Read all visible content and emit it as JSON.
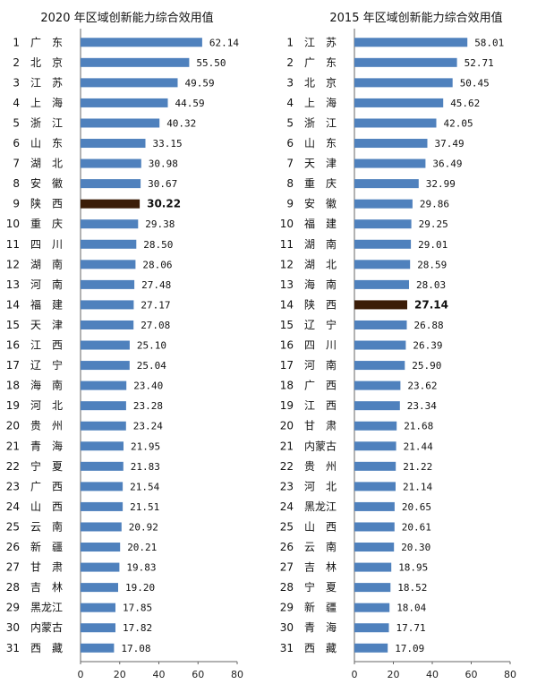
{
  "colors": {
    "bar": "#4f81bd",
    "highlight": "#3b1d08",
    "axis": "#666666",
    "text": "#111111"
  },
  "chart_data": [
    {
      "type": "bar",
      "orientation": "horizontal",
      "title": "2020 年区域创新能力综合效用值",
      "xlim": [
        0,
        80
      ],
      "xticks": [
        0,
        20,
        40,
        60,
        80
      ],
      "grid": false,
      "highlight": "陕西",
      "ranks": [
        "1",
        "2",
        "3",
        "4",
        "5",
        "6",
        "7",
        "8",
        "9",
        "10",
        "11",
        "12",
        "13",
        "14",
        "15",
        "16",
        "17",
        "18",
        "19",
        "20",
        "21",
        "22",
        "23",
        "24",
        "25",
        "26",
        "27",
        "28",
        "29",
        "30",
        "31"
      ],
      "categories": [
        "广　东",
        "北　京",
        "江　苏",
        "上　海",
        "浙　江",
        "山　东",
        "湖　北",
        "安　徽",
        "陕　西",
        "重　庆",
        "四　川",
        "湖　南",
        "河　南",
        "福　建",
        "天　津",
        "江　西",
        "辽　宁",
        "海　南",
        "河　北",
        "贵　州",
        "青　海",
        "宁　夏",
        "广　西",
        "山　西",
        "云　南",
        "新　疆",
        "甘　肃",
        "吉　林",
        "黑龙江",
        "内蒙古",
        "西　藏"
      ],
      "labels": [
        "62.14",
        "55.50",
        "49.59",
        "44.59",
        "40.32",
        "33.15",
        "30.98",
        "30.67",
        "30.22",
        "29.38",
        "28.50",
        "28.06",
        "27.48",
        "27.17",
        "27.08",
        "25.10",
        "25.04",
        "23.40",
        "23.28",
        "23.24",
        "21.95",
        "21.83",
        "21.54",
        "21.51",
        "20.92",
        "20.21",
        "19.83",
        "19.20",
        "17.85",
        "17.82",
        "17.08"
      ],
      "values": [
        62.14,
        55.5,
        49.59,
        44.59,
        40.32,
        33.15,
        30.98,
        30.67,
        30.22,
        29.38,
        28.5,
        28.06,
        27.48,
        27.17,
        27.08,
        25.1,
        25.04,
        23.4,
        23.28,
        23.24,
        21.95,
        21.83,
        21.54,
        21.51,
        20.92,
        20.21,
        19.83,
        19.2,
        17.85,
        17.82,
        17.08
      ]
    },
    {
      "type": "bar",
      "orientation": "horizontal",
      "title": "2015 年区域创新能力综合效用值",
      "xlim": [
        0,
        80
      ],
      "xticks": [
        0,
        20,
        40,
        60,
        80
      ],
      "grid": false,
      "highlight": "陕西",
      "ranks": [
        "1",
        "2",
        "3",
        "4",
        "5",
        "6",
        "7",
        "8",
        "9",
        "10",
        "11",
        "12",
        "13",
        "14",
        "15",
        "16",
        "17",
        "18",
        "19",
        "20",
        "21",
        "22",
        "23",
        "24",
        "25",
        "26",
        "27",
        "28",
        "29",
        "30",
        "31"
      ],
      "categories": [
        "江　苏",
        "广　东",
        "北　京",
        "上　海",
        "浙　江",
        "山　东",
        "天　津",
        "重　庆",
        "安　徽",
        "福　建",
        "湖　南",
        "湖　北",
        "海　南",
        "陕　西",
        "辽　宁",
        "四　川",
        "河　南",
        "广　西",
        "江　西",
        "甘　肃",
        "内蒙古",
        "贵　州",
        "河　北",
        "黑龙江",
        "山　西",
        "云　南",
        "吉　林",
        "宁　夏",
        "新　疆",
        "青　海",
        "西　藏"
      ],
      "labels": [
        "58.01",
        "52.71",
        "50.45",
        "45.62",
        "42.05",
        "37.49",
        "36.49",
        "32.99",
        "29.86",
        "29.25",
        "29.01",
        "28.59",
        "28.03",
        "27.14",
        "26.88",
        "26.39",
        "25.90",
        "23.62",
        "23.34",
        "21.68",
        "21.44",
        "21.22",
        "21.14",
        "20.65",
        "20.61",
        "20.30",
        "18.95",
        "18.52",
        "18.04",
        "17.71",
        "17.09"
      ],
      "values": [
        58.01,
        52.71,
        50.45,
        45.62,
        42.05,
        37.49,
        36.49,
        32.99,
        29.86,
        29.25,
        29.01,
        28.59,
        28.03,
        27.14,
        26.88,
        26.39,
        25.9,
        23.62,
        23.34,
        21.68,
        21.44,
        21.22,
        21.14,
        20.65,
        20.61,
        20.3,
        18.95,
        18.52,
        18.04,
        17.71,
        17.09
      ]
    }
  ]
}
